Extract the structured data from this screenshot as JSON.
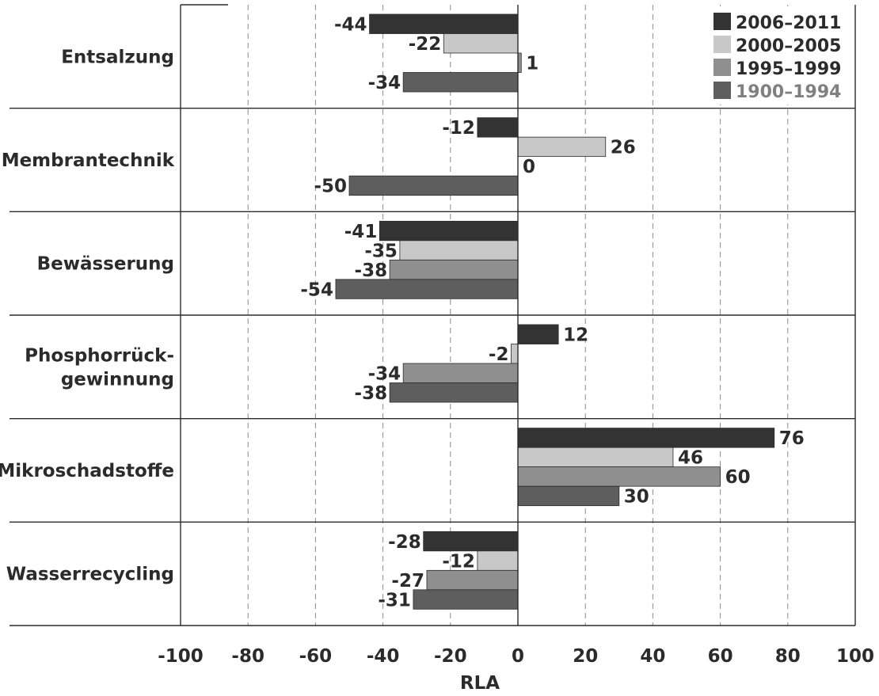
{
  "chart_data": {
    "type": "bar",
    "orientation": "horizontal",
    "categories": [
      "Entsalzung",
      "Membrantechnik",
      "Bewässerung",
      "Phosphorrück-\ngewinnung",
      "Mikroschadstoffe",
      "Wasserrecycling"
    ],
    "series": [
      {
        "name": "2006–2011",
        "color": "#333333",
        "legend_text_color": "#2b2b2b",
        "values": [
          -44,
          -12,
          -41,
          12,
          76,
          -28
        ]
      },
      {
        "name": "2000–2005",
        "color": "#c8c8c8",
        "legend_text_color": "#2b2b2b",
        "values": [
          -22,
          26,
          -35,
          -2,
          46,
          -12
        ]
      },
      {
        "name": "1995–1999",
        "color": "#8f8f8f",
        "legend_text_color": "#2b2b2b",
        "values": [
          1,
          0,
          -38,
          -34,
          60,
          -27
        ]
      },
      {
        "name": "1900–1994",
        "color": "#5e5e5e",
        "legend_text_color": "#808080",
        "values": [
          -34,
          -50,
          -54,
          -38,
          30,
          -31
        ]
      }
    ],
    "value_labels": [
      [
        "-44",
        "-22",
        "1",
        "-34"
      ],
      [
        "-12",
        "26",
        "0",
        "-50"
      ],
      [
        "-41",
        "-35",
        "-38",
        "-54"
      ],
      [
        "12",
        "-2",
        "-34",
        "-38"
      ],
      [
        "76",
        "46",
        "60",
        "30"
      ],
      [
        "-28",
        "-12",
        "-27",
        "-31"
      ]
    ],
    "x_ticks": [
      "-100",
      "-80",
      "-60",
      "-40",
      "-20",
      "0",
      "20",
      "40",
      "60",
      "80",
      "100"
    ],
    "xlim": [
      -100,
      100
    ],
    "xlabel": "RLA",
    "ylabel": "",
    "title": "",
    "grid": "vertical dashed",
    "legend_position": "top-right"
  }
}
